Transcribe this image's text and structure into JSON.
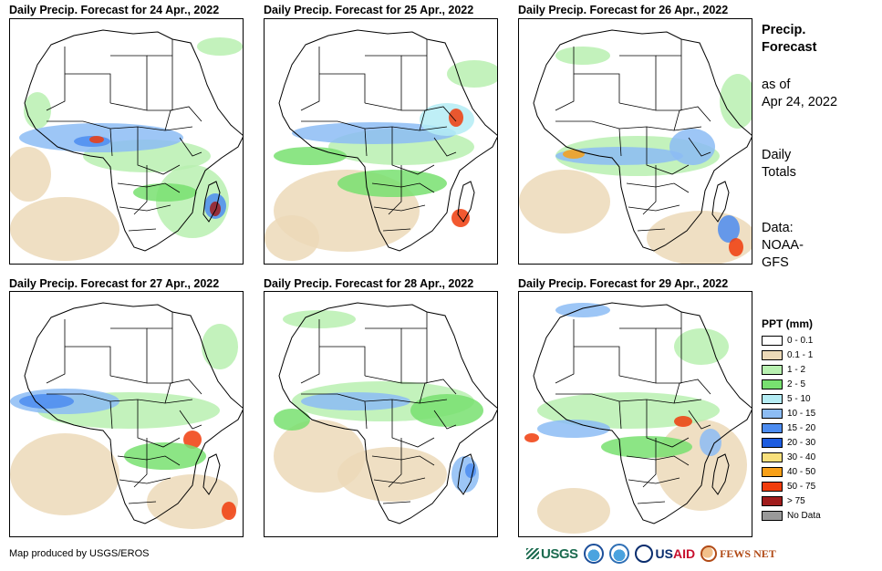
{
  "panels": [
    {
      "title": "Daily Precip. Forecast for 24 Apr., 2022"
    },
    {
      "title": "Daily Precip. Forecast for 25 Apr., 2022"
    },
    {
      "title": "Daily Precip. Forecast for 26 Apr., 2022"
    },
    {
      "title": "Daily Precip. Forecast for 27 Apr., 2022"
    },
    {
      "title": "Daily Precip. Forecast for 28 Apr., 2022"
    },
    {
      "title": "Daily Precip. Forecast for 29 Apr., 2022"
    }
  ],
  "sidebar": {
    "heading_line1": "Precip.",
    "heading_line2": "Forecast",
    "asof_line1": "as of",
    "asof_line2": "Apr 24, 2022",
    "daily_line1": "Daily",
    "daily_line2": "Totals",
    "data_line1": "Data:",
    "data_line2": "NOAA-",
    "data_line3": "GFS"
  },
  "legend": {
    "title": "PPT (mm)",
    "items": [
      {
        "label": "0 - 0.1",
        "color": "#ffffff"
      },
      {
        "label": "0.1 - 1",
        "color": "#ecd9b8"
      },
      {
        "label": "1 - 2",
        "color": "#b8f0b0"
      },
      {
        "label": "2 - 5",
        "color": "#78e070"
      },
      {
        "label": "5 - 10",
        "color": "#b4ecf4"
      },
      {
        "label": "10 - 15",
        "color": "#8cbcf4"
      },
      {
        "label": "15 - 20",
        "color": "#4c8cf0"
      },
      {
        "label": "20 - 30",
        "color": "#1c5ce0"
      },
      {
        "label": "30 - 40",
        "color": "#f8e07c"
      },
      {
        "label": "40 - 50",
        "color": "#f8a018"
      },
      {
        "label": "50 - 75",
        "color": "#f03c0c"
      },
      {
        "label": "> 75",
        "color": "#a01c1c"
      },
      {
        "label": "No Data",
        "color": "#999999"
      }
    ]
  },
  "credit": "Map produced by USGS/EROS",
  "logos": {
    "usgs": "USGS",
    "usaid_part1": "US",
    "usaid_part2": "AID",
    "fews": "FEWS NET"
  }
}
